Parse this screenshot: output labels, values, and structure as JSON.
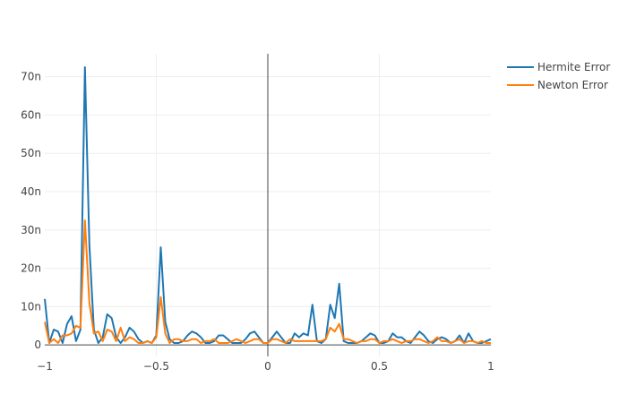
{
  "chart_data": {
    "type": "line",
    "title": "",
    "xlabel": "",
    "ylabel": "",
    "xlim": [
      -1,
      1
    ],
    "ylim": [
      -3,
      76
    ],
    "x_ticks": [
      -1,
      -0.5,
      0,
      0.5,
      1
    ],
    "x_tick_labels": [
      "−1",
      "−0.5",
      "0",
      "0.5",
      "1"
    ],
    "y_ticks": [
      0,
      10,
      20,
      30,
      40,
      50,
      60,
      70
    ],
    "y_tick_labels": [
      "0",
      "10n",
      "20n",
      "30n",
      "40n",
      "50n",
      "60n",
      "70n"
    ],
    "grid": true,
    "legend_position": "top-right",
    "x": [
      -1.0,
      -0.98,
      -0.96,
      -0.94,
      -0.92,
      -0.9,
      -0.88,
      -0.86,
      -0.84,
      -0.82,
      -0.8,
      -0.78,
      -0.76,
      -0.74,
      -0.72,
      -0.7,
      -0.68,
      -0.66,
      -0.64,
      -0.62,
      -0.6,
      -0.58,
      -0.56,
      -0.54,
      -0.52,
      -0.5,
      -0.48,
      -0.46,
      -0.44,
      -0.42,
      -0.4,
      -0.38,
      -0.36,
      -0.34,
      -0.32,
      -0.3,
      -0.28,
      -0.26,
      -0.24,
      -0.22,
      -0.2,
      -0.18,
      -0.16,
      -0.14,
      -0.12,
      -0.1,
      -0.08,
      -0.06,
      -0.04,
      -0.02,
      0.0,
      0.02,
      0.04,
      0.06,
      0.08,
      0.1,
      0.12,
      0.14,
      0.16,
      0.18,
      0.2,
      0.22,
      0.24,
      0.26,
      0.28,
      0.3,
      0.32,
      0.34,
      0.36,
      0.38,
      0.4,
      0.42,
      0.44,
      0.46,
      0.48,
      0.5,
      0.52,
      0.54,
      0.56,
      0.58,
      0.6,
      0.62,
      0.64,
      0.66,
      0.68,
      0.7,
      0.72,
      0.74,
      0.76,
      0.78,
      0.8,
      0.82,
      0.84,
      0.86,
      0.88,
      0.9,
      0.92,
      0.94,
      0.96,
      0.98,
      1.0
    ],
    "series": [
      {
        "name": "Hermite Error",
        "color": "#1f77b4",
        "values": [
          12,
          0.5,
          4,
          3.5,
          0.5,
          5.5,
          7.5,
          1,
          4,
          72.5,
          26,
          4,
          0.5,
          2,
          8,
          7,
          2,
          0.5,
          2,
          4.5,
          3.5,
          1.5,
          0.5,
          1,
          0.5,
          2.5,
          25.5,
          6,
          1.5,
          0.5,
          0.5,
          1,
          2.5,
          3.5,
          3,
          2,
          0.5,
          0.5,
          1,
          2.5,
          2.5,
          1.5,
          0.5,
          0.5,
          0.5,
          1.5,
          3,
          3.5,
          2,
          0.5,
          0.5,
          2,
          3.5,
          2,
          0.5,
          0.5,
          3,
          2,
          3,
          2.5,
          10.5,
          1,
          0.5,
          1.5,
          10.5,
          7,
          16,
          1,
          0.5,
          0.5,
          0.5,
          1,
          2,
          3,
          2.5,
          0.5,
          0.5,
          1,
          3,
          2,
          2,
          1,
          0.5,
          2,
          3.5,
          2.5,
          1,
          0.5,
          1.5,
          2,
          1.5,
          0.5,
          1,
          2.5,
          0.5,
          3,
          1,
          0.5,
          0.5,
          1,
          1.5
        ]
      },
      {
        "name": "Newton Error",
        "color": "#ff7f0e",
        "values": [
          6,
          0.5,
          1.5,
          0.5,
          2.5,
          2.5,
          3,
          5,
          4.5,
          32.5,
          11,
          3,
          3.5,
          1,
          4,
          3.5,
          1,
          4.5,
          1,
          2,
          1.5,
          0.5,
          0.5,
          1,
          0.5,
          2,
          12.5,
          3,
          0.5,
          1.5,
          1.5,
          1,
          1,
          1.5,
          1.5,
          0.5,
          1,
          1,
          1.5,
          0.5,
          0.5,
          0.5,
          1,
          1.5,
          1,
          0.5,
          1,
          1.5,
          1.5,
          0.5,
          0.5,
          1.5,
          1.5,
          1,
          0.5,
          1.5,
          1,
          1,
          1,
          1,
          1,
          1,
          1,
          1.5,
          4.5,
          3.5,
          5.5,
          1.5,
          1.5,
          1,
          0.5,
          1,
          1,
          1.5,
          1.5,
          0.5,
          1,
          1,
          1.5,
          1,
          0.5,
          1,
          1,
          1.5,
          1.5,
          1,
          0.5,
          1,
          2,
          1,
          1,
          0.5,
          1,
          1.5,
          0.5,
          1,
          1,
          0.5,
          1,
          0.5,
          0.5
        ]
      }
    ]
  }
}
